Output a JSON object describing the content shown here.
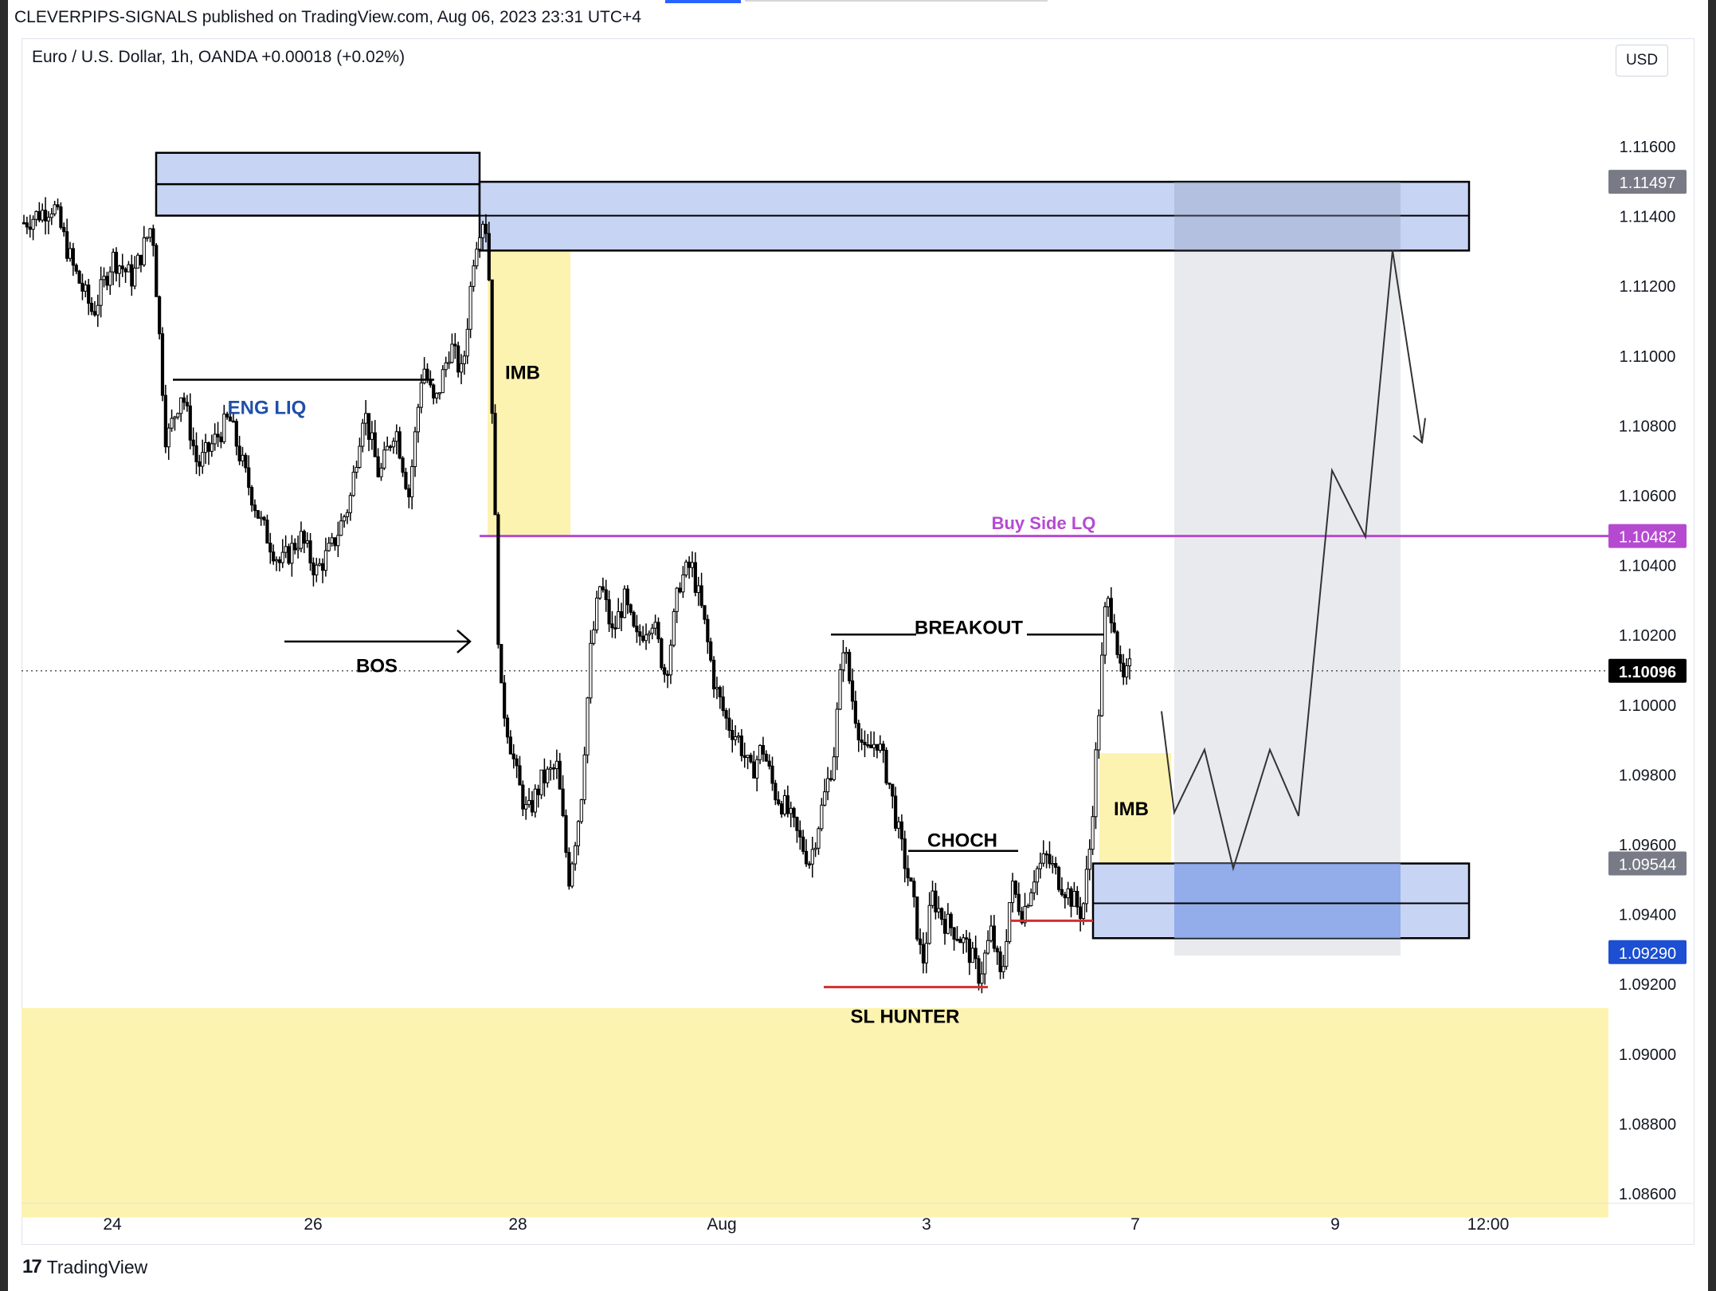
{
  "header": {
    "published": "CLEVERPIPS-SIGNALS published on TradingView.com, Aug 06, 2023 23:31 UTC+4",
    "legend": "Euro / U.S. Dollar, 1h, OANDA  +0.00018 (+0.02%)",
    "currency_button": "USD"
  },
  "footer": {
    "logo_glyph": "17",
    "brand": "TradingView"
  },
  "colors": {
    "zone_fill": "#c7d4f4",
    "zone_dark": "#8aa4e8",
    "imbalance": "#fdf3b0",
    "projection_bg": "#e9eaee",
    "buy_side": "#b54ad1",
    "sl_line": "#d32f2f",
    "price_label_blue": "#1c4fd1"
  },
  "chart_data": {
    "type": "candlestick",
    "symbol": "Euro / U.S. Dollar",
    "timeframe": "1h",
    "exchange": "OANDA",
    "change": "+0.00018 (+0.02%)",
    "currency": "USD",
    "x_tick_labels": [
      "24",
      "26",
      "28",
      "Aug",
      "3",
      "7",
      "9",
      "12:00"
    ],
    "y_axis": {
      "range": [
        1.0855,
        1.1195
      ],
      "tick_labels": [
        "1.11600",
        "1.11400",
        "1.11200",
        "1.11000",
        "1.10800",
        "1.10600",
        "1.10400",
        "1.10200",
        "1.10000",
        "1.09800",
        "1.09600",
        "1.09400",
        "1.09200",
        "1.09000",
        "1.08800",
        "1.08600"
      ],
      "tick_values": [
        1.116,
        1.114,
        1.112,
        1.11,
        1.108,
        1.106,
        1.104,
        1.102,
        1.1,
        1.098,
        1.096,
        1.094,
        1.092,
        1.09,
        1.088,
        1.086
      ]
    },
    "price_labels": [
      {
        "text": "1.11497",
        "value": 1.11497,
        "style": "gray"
      },
      {
        "text": "1.10482",
        "value": 1.10482,
        "style": "purple"
      },
      {
        "text": "1.10096",
        "value": 1.10096,
        "style": "black"
      },
      {
        "text": "1.09544",
        "value": 1.09544,
        "style": "gray"
      },
      {
        "text": "1.09290",
        "value": 1.0929,
        "style": "blue"
      }
    ],
    "close_path": [
      [
        0,
        1.1138
      ],
      [
        1.5,
        1.1143
      ],
      [
        2.5,
        1.1125
      ],
      [
        3.5,
        1.1112
      ],
      [
        4.5,
        1.1128
      ],
      [
        5.5,
        1.1122
      ],
      [
        6.5,
        1.1138
      ],
      [
        7.2,
        1.1075
      ],
      [
        8.0,
        1.109
      ],
      [
        8.8,
        1.1068
      ],
      [
        9.6,
        1.1075
      ],
      [
        10.4,
        1.1082
      ],
      [
        11.2,
        1.1066
      ],
      [
        12.0,
        1.1052
      ],
      [
        13.0,
        1.104
      ],
      [
        14.0,
        1.1048
      ],
      [
        14.8,
        1.1038
      ],
      [
        15.6,
        1.1045
      ],
      [
        16.5,
        1.1058
      ],
      [
        17.2,
        1.1085
      ],
      [
        18.0,
        1.1065
      ],
      [
        18.8,
        1.108
      ],
      [
        19.5,
        1.106
      ],
      [
        20.2,
        1.1098
      ],
      [
        20.8,
        1.1085
      ],
      [
        21.6,
        1.1103
      ],
      [
        22.2,
        1.1094
      ],
      [
        22.8,
        1.113
      ],
      [
        23.2,
        1.114
      ],
      [
        23.5,
        1.1135
      ],
      [
        23.8,
        1.1065
      ],
      [
        24.1,
        1.1005
      ],
      [
        24.6,
        1.099
      ],
      [
        25.0,
        1.0978
      ],
      [
        25.5,
        1.0968
      ],
      [
        26.2,
        1.0978
      ],
      [
        27.0,
        1.0982
      ],
      [
        27.6,
        1.095
      ],
      [
        28.2,
        1.0972
      ],
      [
        28.7,
        1.1015
      ],
      [
        29.2,
        1.1035
      ],
      [
        29.8,
        1.102
      ],
      [
        30.4,
        1.103
      ],
      [
        31.0,
        1.1018
      ],
      [
        31.8,
        1.1025
      ],
      [
        32.5,
        1.1008
      ],
      [
        33.2,
        1.1035
      ],
      [
        33.8,
        1.104
      ],
      [
        34.4,
        1.1025
      ],
      [
        35.0,
        1.1005
      ],
      [
        35.6,
        1.0995
      ],
      [
        36.2,
        1.099
      ],
      [
        36.8,
        1.098
      ],
      [
        37.4,
        1.0988
      ],
      [
        38.0,
        1.0975
      ],
      [
        38.6,
        1.097
      ],
      [
        39.2,
        1.0962
      ],
      [
        39.8,
        1.0955
      ],
      [
        40.4,
        1.097
      ],
      [
        41.0,
        1.0985
      ],
      [
        41.5,
        1.1018
      ],
      [
        42.0,
        1.1
      ],
      [
        42.6,
        1.0985
      ],
      [
        43.2,
        1.099
      ],
      [
        43.8,
        1.0978
      ],
      [
        44.4,
        1.096
      ],
      [
        45.0,
        1.0945
      ],
      [
        45.5,
        1.0925
      ],
      [
        46.0,
        1.0945
      ],
      [
        46.6,
        1.0938
      ],
      [
        47.2,
        1.0935
      ],
      [
        47.8,
        1.093
      ],
      [
        48.4,
        1.0922
      ],
      [
        49.0,
        1.0935
      ],
      [
        49.5,
        1.092
      ],
      [
        50.0,
        1.0948
      ],
      [
        50.6,
        1.094
      ],
      [
        51.2,
        1.0952
      ],
      [
        51.8,
        1.0956
      ],
      [
        52.4,
        1.095
      ],
      [
        53.0,
        1.0945
      ],
      [
        53.6,
        1.094
      ],
      [
        54.0,
        1.096
      ],
      [
        54.4,
        1.0995
      ],
      [
        54.8,
        1.103
      ],
      [
        55.2,
        1.1025
      ],
      [
        55.6,
        1.1005
      ],
      [
        56.0,
        1.101
      ]
    ],
    "annotations": [
      {
        "label": "ENG LIQ"
      },
      {
        "label": "IMB"
      },
      {
        "label": "BOS"
      },
      {
        "label": "Buy Side LQ"
      },
      {
        "label": "BREAKOUT"
      },
      {
        "label": "CHOCH"
      },
      {
        "label": "SL HUNTER"
      },
      {
        "label": "IMB"
      }
    ],
    "zones": [
      {
        "name": "supply-zone-left",
        "from": 1.114,
        "to": 1.1158
      },
      {
        "name": "supply-zone",
        "from": 1.113,
        "to": 1.11497
      },
      {
        "name": "demand-zone",
        "from": 1.0933,
        "to": 1.09544
      },
      {
        "name": "imbalance-top",
        "from": 1.1048,
        "to": 1.113
      },
      {
        "name": "imbalance-bottom",
        "from": 1.09544,
        "to": 1.0986
      },
      {
        "name": "discount-zone",
        "from": 1.0853,
        "to": 1.0913
      }
    ],
    "grid": false,
    "legend_position": "top-left"
  }
}
